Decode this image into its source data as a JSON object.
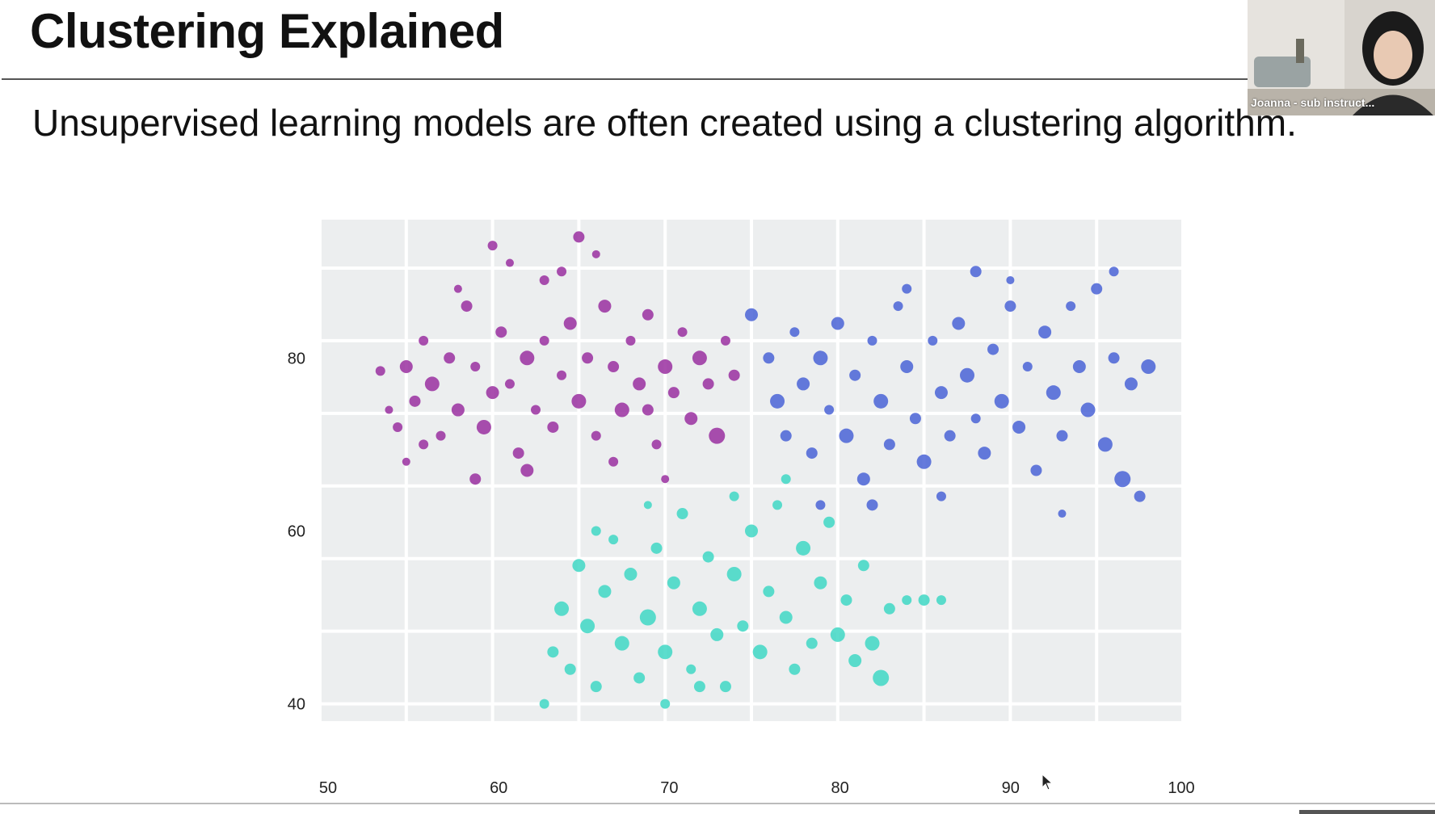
{
  "slide": {
    "title": "Clustering Explained",
    "subtitle": "Unsupervised learning models are often created using a clustering algorithm."
  },
  "webcam": {
    "participant_label": "Joanna - sub instruct..."
  },
  "chart_data": {
    "type": "scatter",
    "title": "",
    "xlabel": "",
    "ylabel": "",
    "xlim": [
      50,
      100
    ],
    "ylim": [
      38,
      96
    ],
    "x_ticks": [
      50,
      60,
      70,
      80,
      90,
      100
    ],
    "y_ticks": [
      40,
      60,
      80
    ],
    "grid": true,
    "legend": "none",
    "colors": {
      "plot_background": "#eceeef",
      "grid": "#ffffff",
      "purple_cluster": "#9a2fa0",
      "blue_cluster": "#4a63d6",
      "teal_cluster": "#3fd7c4"
    },
    "series": [
      {
        "color": "#9a2fa0",
        "points": [
          [
            53.5,
            78.5,
            6
          ],
          [
            54,
            74,
            5
          ],
          [
            54.5,
            72,
            6
          ],
          [
            55,
            79,
            8
          ],
          [
            55.5,
            75,
            7
          ],
          [
            56,
            82,
            6
          ],
          [
            56.5,
            77,
            9
          ],
          [
            57,
            71,
            6
          ],
          [
            57.5,
            80,
            7
          ],
          [
            58,
            74,
            8
          ],
          [
            58.5,
            86,
            7
          ],
          [
            59,
            79,
            6
          ],
          [
            59.5,
            72,
            9
          ],
          [
            60,
            76,
            8
          ],
          [
            60.5,
            83,
            7
          ],
          [
            61,
            77,
            6
          ],
          [
            61.5,
            69,
            7
          ],
          [
            62,
            80,
            9
          ],
          [
            62.5,
            74,
            6
          ],
          [
            63,
            89,
            6
          ],
          [
            63.5,
            72,
            7
          ],
          [
            64,
            78,
            6
          ],
          [
            64.5,
            84,
            8
          ],
          [
            65,
            75,
            9
          ],
          [
            65.5,
            80,
            7
          ],
          [
            66,
            71,
            6
          ],
          [
            66.5,
            86,
            8
          ],
          [
            67,
            79,
            7
          ],
          [
            67.5,
            74,
            9
          ],
          [
            68,
            82,
            6
          ],
          [
            68.5,
            77,
            8
          ],
          [
            69,
            85,
            7
          ],
          [
            69.5,
            70,
            6
          ],
          [
            70,
            79,
            9
          ],
          [
            70.5,
            76,
            7
          ],
          [
            71,
            83,
            6
          ],
          [
            71.5,
            73,
            8
          ],
          [
            72,
            80,
            9
          ],
          [
            72.5,
            77,
            7
          ],
          [
            73,
            71,
            10
          ],
          [
            73.5,
            82,
            6
          ],
          [
            74,
            78,
            7
          ],
          [
            60,
            93,
            6
          ],
          [
            65,
            94,
            7
          ],
          [
            58,
            88,
            5
          ],
          [
            56,
            70,
            6
          ],
          [
            62,
            67,
            8
          ],
          [
            67,
            68,
            6
          ],
          [
            70,
            66,
            5
          ],
          [
            59,
            66,
            7
          ],
          [
            55,
            68,
            5
          ],
          [
            61,
            91,
            5
          ],
          [
            64,
            90,
            6
          ],
          [
            66,
            92,
            5
          ],
          [
            63,
            82,
            6
          ],
          [
            69,
            74,
            7
          ]
        ]
      },
      {
        "color": "#4a63d6",
        "points": [
          [
            75,
            85,
            8
          ],
          [
            76,
            80,
            7
          ],
          [
            76.5,
            75,
            9
          ],
          [
            77,
            71,
            7
          ],
          [
            77.5,
            83,
            6
          ],
          [
            78,
            77,
            8
          ],
          [
            78.5,
            69,
            7
          ],
          [
            79,
            80,
            9
          ],
          [
            79.5,
            74,
            6
          ],
          [
            80,
            84,
            8
          ],
          [
            80.5,
            71,
            9
          ],
          [
            81,
            78,
            7
          ],
          [
            81.5,
            66,
            8
          ],
          [
            82,
            82,
            6
          ],
          [
            82.5,
            75,
            9
          ],
          [
            83,
            70,
            7
          ],
          [
            83.5,
            86,
            6
          ],
          [
            84,
            79,
            8
          ],
          [
            84.5,
            73,
            7
          ],
          [
            85,
            68,
            9
          ],
          [
            85.5,
            82,
            6
          ],
          [
            86,
            76,
            8
          ],
          [
            86.5,
            71,
            7
          ],
          [
            87,
            84,
            8
          ],
          [
            87.5,
            78,
            9
          ],
          [
            88,
            73,
            6
          ],
          [
            88.5,
            69,
            8
          ],
          [
            89,
            81,
            7
          ],
          [
            89.5,
            75,
            9
          ],
          [
            90,
            86,
            7
          ],
          [
            90.5,
            72,
            8
          ],
          [
            91,
            79,
            6
          ],
          [
            91.5,
            67,
            7
          ],
          [
            92,
            83,
            8
          ],
          [
            92.5,
            76,
            9
          ],
          [
            93,
            71,
            7
          ],
          [
            93.5,
            86,
            6
          ],
          [
            94,
            79,
            8
          ],
          [
            94.5,
            74,
            9
          ],
          [
            95,
            88,
            7
          ],
          [
            95.5,
            70,
            9
          ],
          [
            96,
            80,
            7
          ],
          [
            96.5,
            66,
            10
          ],
          [
            97,
            77,
            8
          ],
          [
            97.5,
            64,
            7
          ],
          [
            98,
            79,
            9
          ],
          [
            96,
            90,
            6
          ],
          [
            90,
            89,
            5
          ],
          [
            88,
            90,
            7
          ],
          [
            84,
            88,
            6
          ],
          [
            82,
            63,
            7
          ],
          [
            79,
            63,
            6
          ],
          [
            93,
            62,
            5
          ],
          [
            86,
            64,
            6
          ]
        ]
      },
      {
        "color": "#3fd7c4",
        "points": [
          [
            63,
            40,
            6
          ],
          [
            63.5,
            46,
            7
          ],
          [
            64,
            51,
            9
          ],
          [
            64.5,
            44,
            7
          ],
          [
            65,
            56,
            8
          ],
          [
            65.5,
            49,
            9
          ],
          [
            66,
            42,
            7
          ],
          [
            66.5,
            53,
            8
          ],
          [
            67,
            59,
            6
          ],
          [
            67.5,
            47,
            9
          ],
          [
            68,
            55,
            8
          ],
          [
            68.5,
            43,
            7
          ],
          [
            69,
            50,
            10
          ],
          [
            69.5,
            58,
            7
          ],
          [
            70,
            46,
            9
          ],
          [
            70.5,
            54,
            8
          ],
          [
            71,
            62,
            7
          ],
          [
            71.5,
            44,
            6
          ],
          [
            72,
            51,
            9
          ],
          [
            72.5,
            57,
            7
          ],
          [
            73,
            48,
            8
          ],
          [
            73.5,
            42,
            7
          ],
          [
            74,
            55,
            9
          ],
          [
            74.5,
            49,
            7
          ],
          [
            75,
            60,
            8
          ],
          [
            75.5,
            46,
            9
          ],
          [
            76,
            53,
            7
          ],
          [
            76.5,
            63,
            6
          ],
          [
            77,
            50,
            8
          ],
          [
            77.5,
            44,
            7
          ],
          [
            78,
            58,
            9
          ],
          [
            78.5,
            47,
            7
          ],
          [
            79,
            54,
            8
          ],
          [
            79.5,
            61,
            7
          ],
          [
            80,
            48,
            9
          ],
          [
            80.5,
            52,
            7
          ],
          [
            81,
            45,
            8
          ],
          [
            81.5,
            56,
            7
          ],
          [
            82,
            47,
            9
          ],
          [
            82.5,
            43,
            10
          ],
          [
            83,
            51,
            7
          ],
          [
            84,
            52,
            6
          ],
          [
            85,
            52,
            7
          ],
          [
            86,
            52,
            6
          ],
          [
            70,
            40,
            6
          ],
          [
            72,
            42,
            7
          ],
          [
            66,
            60,
            6
          ],
          [
            69,
            63,
            5
          ],
          [
            74,
            64,
            6
          ],
          [
            77,
            66,
            6
          ]
        ]
      }
    ]
  }
}
